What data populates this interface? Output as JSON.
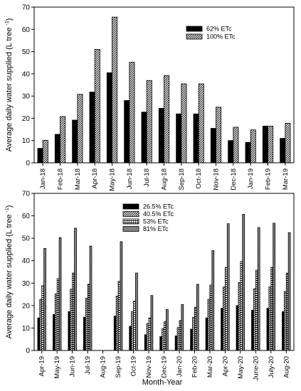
{
  "figure": {
    "xlabel": "Month-Year"
  },
  "chart_data": [
    {
      "type": "bar",
      "ylabel": "Average daily water supplied (L tree",
      "ylabel_sup": "-1",
      "ylabel_close": ")",
      "ylim": [
        0,
        70
      ],
      "yticks": [
        0,
        10,
        20,
        30,
        40,
        50,
        60,
        70
      ],
      "legend_position": "top-right",
      "grid": false,
      "categories": [
        "Jan-18",
        "Feb-18",
        "Mar-18",
        "Apr-18",
        "May-18",
        "Jun-18",
        "Jul-18",
        "Aug-18",
        "Sep-18",
        "Oct-18",
        "Nov-18",
        "Dec-18",
        "Jan-19",
        "Feb-19",
        "Mar-19"
      ],
      "series": [
        {
          "name": "62% ETc",
          "fill": "solid-black",
          "values": [
            6.5,
            12.8,
            19.2,
            31.8,
            40.5,
            28,
            22.8,
            24.5,
            22,
            22,
            15.5,
            10,
            9.2,
            16.5,
            11
          ]
        },
        {
          "name": "100%  ETc",
          "fill": "diagonal-hatch",
          "values": [
            10.1,
            20.8,
            30.8,
            51,
            65.5,
            45.2,
            37,
            39.2,
            35.5,
            35.5,
            25,
            16,
            14.8,
            16.5,
            17.8
          ]
        }
      ]
    },
    {
      "type": "bar",
      "ylabel": "Average daily water supplied (L tree",
      "ylabel_sup": "-1",
      "ylabel_close": ")",
      "ylim": [
        0,
        70
      ],
      "yticks": [
        0,
        10,
        20,
        30,
        40,
        50,
        60,
        70
      ],
      "legend_position": "top-left",
      "grid": false,
      "categories": [
        "Apr-19",
        "May-19",
        "Jun-19",
        "Jul-19",
        "Aug-19",
        "Sep-19",
        "Oct-19",
        "Nov-19",
        "Dec-19",
        "Jan-20",
        "Feb-20",
        "Mar-20",
        "Apr-20",
        "May-20",
        "June-20",
        "July-20",
        "Aug-20"
      ],
      "series": [
        {
          "name": "26.5%  ETc",
          "fill": "solid-black",
          "values": [
            14.5,
            16,
            17.3,
            14.8,
            null,
            15.3,
            10.8,
            7,
            6.2,
            6.5,
            9.5,
            14.5,
            18.8,
            20,
            18,
            18.8,
            17.3
          ]
        },
        {
          "name": "40.5%  ETc",
          "fill": "diagonal-hatch",
          "values": [
            22.8,
            25.2,
            27.3,
            23.3,
            null,
            24.2,
            17.3,
            12,
            9.8,
            10.2,
            14.8,
            22.8,
            28.3,
            30.3,
            27.5,
            28.3,
            26.3
          ]
        },
        {
          "name": "53%  ETc",
          "fill": "grid-hatch",
          "values": [
            29,
            32,
            34.5,
            29.5,
            null,
            30.8,
            22,
            14.5,
            12.8,
            13.3,
            19.3,
            29.2,
            37,
            39.7,
            35.8,
            37,
            34.5
          ]
        },
        {
          "name": "81%  ETc",
          "fill": "dense-check",
          "values": [
            45.5,
            50.3,
            54.5,
            46.5,
            null,
            48.5,
            34.5,
            24.5,
            18.3,
            20.5,
            29.5,
            44.5,
            56.5,
            60.7,
            54.8,
            56.7,
            52.5
          ]
        }
      ]
    }
  ]
}
